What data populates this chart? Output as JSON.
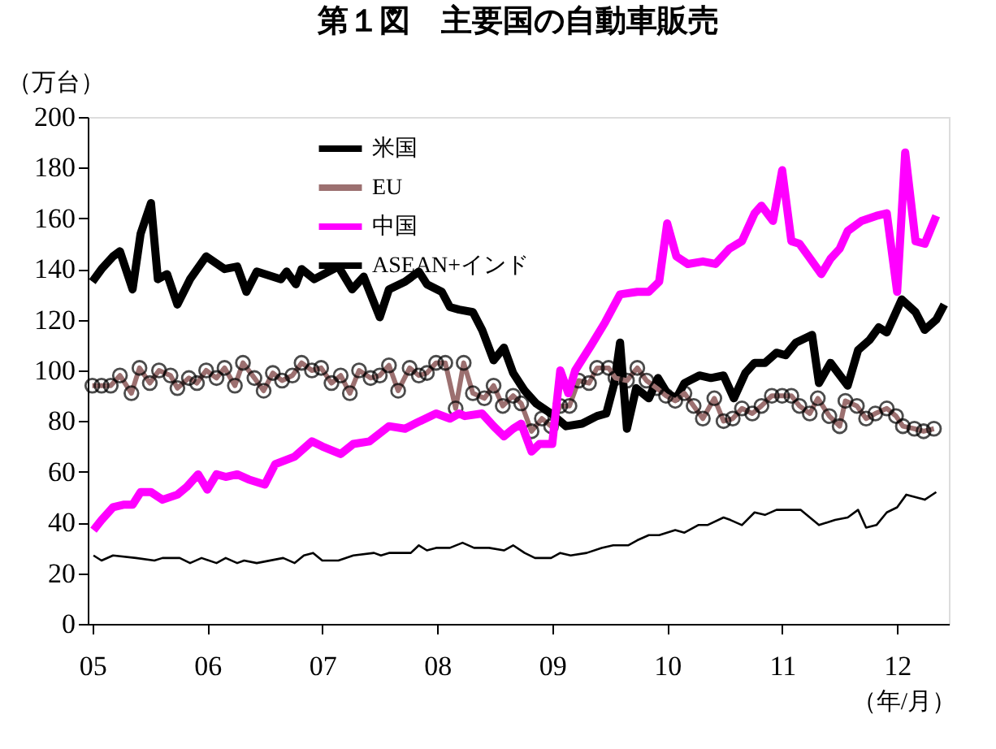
{
  "chart_data": {
    "type": "line",
    "title": "第１図　主要国の自動車販売",
    "ylabel": "（万台）",
    "xlabel": "（年/月）",
    "xlim": [
      2004.96,
      2012.45
    ],
    "xticks": [
      {
        "value": 2005,
        "label": "05"
      },
      {
        "value": 2006,
        "label": "06"
      },
      {
        "value": 2007,
        "label": "07"
      },
      {
        "value": 2008,
        "label": "08"
      },
      {
        "value": 2009,
        "label": "09"
      },
      {
        "value": 2010,
        "label": "10"
      },
      {
        "value": 2011,
        "label": "11"
      },
      {
        "value": 2012,
        "label": "12"
      }
    ],
    "ylim": [
      0,
      200
    ],
    "yticks": [
      0,
      20,
      40,
      60,
      80,
      100,
      120,
      140,
      160,
      180,
      200
    ],
    "grid": false,
    "legend": "top left",
    "series": [
      {
        "name": "米国",
        "color": "#000000",
        "x": [
          2005.0,
          2005.08,
          2005.18,
          2005.24,
          2005.35,
          2005.42,
          2005.51,
          2005.57,
          2005.65,
          2005.74,
          2005.85,
          2005.99,
          2006.15,
          2006.26,
          2006.34,
          2006.43,
          2006.64,
          2006.69,
          2006.77,
          2006.82,
          2006.93,
          2007.14,
          2007.26,
          2007.36,
          2007.5,
          2007.58,
          2007.72,
          2007.84,
          2007.91,
          2008.04,
          2008.11,
          2008.19,
          2008.31,
          2008.39,
          2008.49,
          2008.58,
          2008.66,
          2008.76,
          2008.86,
          2008.99,
          2009.12,
          2009.26,
          2009.39,
          2009.47,
          2009.54,
          2009.59,
          2009.65,
          2009.73,
          2009.84,
          2009.92,
          2010.0,
          2010.08,
          2010.15,
          2010.28,
          2010.38,
          2010.49,
          2010.58,
          2010.68,
          2010.76,
          2010.85,
          2010.95,
          2011.03,
          2011.12,
          2011.26,
          2011.32,
          2011.42,
          2011.57,
          2011.66,
          2011.76,
          2011.84,
          2011.91,
          2012.04,
          2012.16,
          2012.24,
          2012.34,
          2012.41
        ],
        "values": [
          135,
          140,
          145,
          147,
          132,
          154,
          166,
          136,
          138,
          126,
          136,
          145,
          140,
          141,
          131,
          139,
          136,
          139,
          134,
          140,
          136,
          141,
          132,
          137,
          121,
          132,
          135,
          139,
          134,
          131,
          125,
          124,
          123,
          116,
          104,
          109,
          99,
          92,
          87,
          83,
          78,
          79,
          82,
          83,
          95,
          111,
          77,
          93,
          89,
          97,
          91,
          89,
          95,
          98,
          97,
          98,
          89,
          99,
          103,
          103,
          107,
          106,
          111,
          114,
          95,
          103,
          94,
          108,
          112,
          117,
          115,
          128,
          123,
          116,
          120,
          126
        ]
      },
      {
        "name": "EU",
        "color": "#9c7070",
        "marker": "circle",
        "x": [
          2005.0,
          2005.08,
          2005.16,
          2005.24,
          2005.34,
          2005.41,
          2005.5,
          2005.58,
          2005.68,
          2005.74,
          2005.84,
          2005.91,
          2005.99,
          2006.08,
          2006.15,
          2006.24,
          2006.31,
          2006.41,
          2006.49,
          2006.57,
          2006.65,
          2006.74,
          2006.82,
          2006.91,
          2006.99,
          2007.08,
          2007.16,
          2007.24,
          2007.32,
          2007.42,
          2007.5,
          2007.58,
          2007.66,
          2007.76,
          2007.84,
          2007.91,
          2007.99,
          2008.07,
          2008.16,
          2008.23,
          2008.31,
          2008.41,
          2008.49,
          2008.57,
          2008.66,
          2008.73,
          2008.82,
          2008.91,
          2008.99,
          2009.07,
          2009.15,
          2009.23,
          2009.32,
          2009.39,
          2009.49,
          2009.55,
          2009.65,
          2009.74,
          2009.82,
          2009.91,
          2009.99,
          2010.07,
          2010.15,
          2010.23,
          2010.31,
          2010.41,
          2010.49,
          2010.57,
          2010.65,
          2010.74,
          2010.82,
          2010.91,
          2011.0,
          2011.08,
          2011.15,
          2011.24,
          2011.31,
          2011.41,
          2011.5,
          2011.55,
          2011.65,
          2011.73,
          2011.81,
          2011.91,
          2011.99,
          2012.05,
          2012.15,
          2012.23,
          2012.32
        ],
        "values": [
          94,
          94,
          94,
          98,
          91,
          101,
          95,
          100,
          98,
          93,
          97,
          95,
          100,
          97,
          101,
          94,
          103,
          97,
          92,
          99,
          96,
          98,
          103,
          100,
          101,
          95,
          98,
          91,
          100,
          97,
          98,
          102,
          92,
          101,
          98,
          99,
          103,
          103,
          85,
          103,
          91,
          89,
          94,
          86,
          90,
          87,
          76,
          81,
          78,
          86,
          86,
          96,
          95,
          101,
          101,
          97,
          96,
          101,
          96,
          93,
          90,
          88,
          91,
          86,
          81,
          89,
          80,
          81,
          85,
          83,
          86,
          90,
          90,
          90,
          86,
          83,
          89,
          82,
          78,
          88,
          86,
          81,
          83,
          85,
          82,
          78,
          77,
          76,
          77
        ]
      },
      {
        "name": "中国",
        "color": "#ff00ff",
        "x": [
          2005.01,
          2005.08,
          2005.18,
          2005.27,
          2005.35,
          2005.42,
          2005.51,
          2005.61,
          2005.74,
          2005.82,
          2005.92,
          2006.0,
          2006.08,
          2006.16,
          2006.26,
          2006.36,
          2006.5,
          2006.59,
          2006.76,
          2006.91,
          2007.0,
          2007.16,
          2007.27,
          2007.41,
          2007.58,
          2007.72,
          2007.85,
          2007.99,
          2008.11,
          2008.19,
          2008.24,
          2008.39,
          2008.49,
          2008.58,
          2008.66,
          2008.73,
          2008.82,
          2008.89,
          2009.0,
          2009.07,
          2009.14,
          2009.2,
          2009.34,
          2009.46,
          2009.59,
          2009.74,
          2009.84,
          2009.93,
          2010.0,
          2010.08,
          2010.18,
          2010.31,
          2010.42,
          2010.54,
          2010.65,
          2010.76,
          2010.82,
          2010.92,
          2011.0,
          2011.08,
          2011.15,
          2011.23,
          2011.34,
          2011.42,
          2011.5,
          2011.57,
          2011.69,
          2011.82,
          2011.91,
          2012.0,
          2012.07,
          2012.16,
          2012.24,
          2012.34
        ],
        "values": [
          37,
          41,
          46,
          47,
          47,
          52,
          52,
          49,
          51,
          54,
          59,
          53,
          59,
          58,
          59,
          57,
          55,
          63,
          66,
          72,
          70,
          67,
          71,
          72,
          78,
          77,
          80,
          83,
          81,
          83,
          82,
          83,
          78,
          74,
          77,
          79,
          68,
          71,
          71,
          100,
          91,
          100,
          110,
          119,
          130,
          131,
          131,
          135,
          158,
          145,
          142,
          143,
          142,
          148,
          151,
          162,
          165,
          159,
          179,
          151,
          150,
          145,
          138,
          144,
          148,
          155,
          159,
          161,
          162,
          131,
          186,
          151,
          150,
          161
        ]
      },
      {
        "name": "ASEAN+インド",
        "color": "#000000",
        "x": [
          2005.01,
          2005.08,
          2005.18,
          2005.38,
          2005.54,
          2005.61,
          2005.76,
          2005.85,
          2005.95,
          2006.08,
          2006.16,
          2006.26,
          2006.32,
          2006.43,
          2006.66,
          2006.76,
          2006.84,
          2006.92,
          2007.0,
          2007.14,
          2007.27,
          2007.45,
          2007.51,
          2007.58,
          2007.77,
          2007.84,
          2007.91,
          2007.99,
          2008.11,
          2008.22,
          2008.32,
          2008.45,
          2008.58,
          2008.66,
          2008.76,
          2008.85,
          2008.99,
          2009.07,
          2009.16,
          2009.3,
          2009.43,
          2009.53,
          2009.66,
          2009.74,
          2009.84,
          2009.93,
          2010.07,
          2010.15,
          2010.27,
          2010.35,
          2010.49,
          2010.55,
          2010.65,
          2010.76,
          2010.85,
          2010.95,
          2011.05,
          2011.16,
          2011.32,
          2011.46,
          2011.57,
          2011.66,
          2011.73,
          2011.82,
          2011.91,
          2012.0,
          2012.08,
          2012.24,
          2012.34
        ],
        "values": [
          27,
          25,
          27,
          26,
          25,
          26,
          26,
          24,
          26,
          24,
          26,
          24,
          25,
          24,
          26,
          24,
          27,
          28,
          25,
          25,
          27,
          28,
          27,
          28,
          28,
          31,
          29,
          30,
          30,
          32,
          30,
          30,
          29,
          31,
          28,
          26,
          26,
          28,
          27,
          28,
          30,
          31,
          31,
          33,
          35,
          35,
          37,
          36,
          39,
          39,
          42,
          41,
          39,
          44,
          43,
          45,
          45,
          45,
          39,
          41,
          42,
          45,
          38,
          39,
          44,
          46,
          51,
          49,
          52
        ]
      }
    ]
  }
}
